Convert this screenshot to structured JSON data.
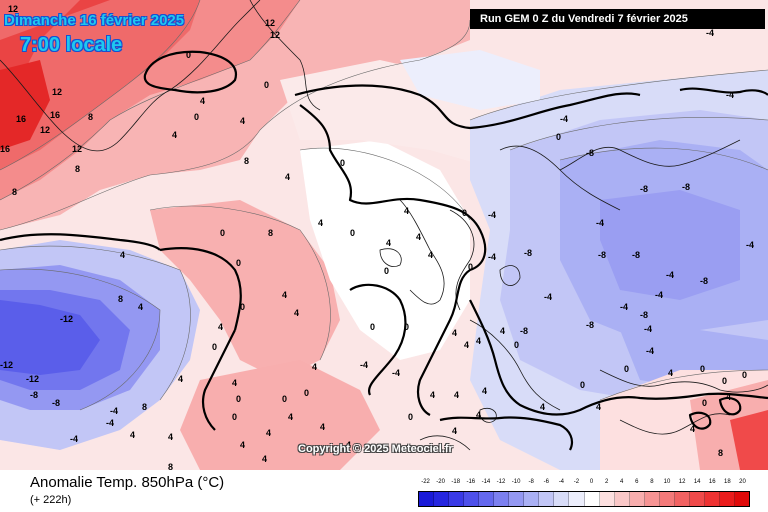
{
  "header": {
    "date": "Dimanche 16 février 2025",
    "time": "7:00 locale",
    "run": "Run GEM 0 Z du Vendredi 7 février 2025"
  },
  "copyright": "Copyright © 2025 Meteociel.fr",
  "footer": {
    "title": "Anomalie Temp. 850hPa (°C)",
    "lead": "(+ 222h)"
  },
  "legend": {
    "ticks": [
      "-22",
      "-20",
      "-18",
      "-16",
      "-14",
      "-12",
      "-10",
      "-8",
      "-6",
      "-4",
      "-2",
      "0",
      "2",
      "4",
      "6",
      "8",
      "10",
      "12",
      "14",
      "16",
      "18",
      "20"
    ],
    "colors": [
      "#1a1ad8",
      "#2626e0",
      "#3a3ae6",
      "#4e50ea",
      "#6468ee",
      "#7c80f0",
      "#9498f2",
      "#aab0f4",
      "#c2c6f6",
      "#d8dcf8",
      "#eceefc",
      "#ffffff",
      "#fde0e0",
      "#fac8c8",
      "#f8aeae",
      "#f69494",
      "#f47a7a",
      "#f26262",
      "#f04a4a",
      "#ee3232",
      "#ea1c1c",
      "#e00a0a"
    ]
  },
  "contour_labels": [
    "12",
    "12",
    "12",
    "12",
    "8",
    "12",
    "16",
    "16",
    "12",
    "16",
    "8",
    "8",
    "0",
    "4",
    "0",
    "4",
    "4",
    "0",
    "4",
    "0",
    "0",
    "0",
    "0",
    "4",
    "4",
    "0",
    "-4",
    "-8",
    "-8",
    "-8",
    "-8",
    "-4",
    "-4",
    "-4",
    "-8",
    "-8",
    "-4",
    "-12",
    "-12",
    "-12",
    "-8",
    "-8",
    "-4",
    "-4",
    "-4",
    "4",
    "4",
    "4",
    "4",
    "4",
    "8",
    "4",
    "0",
    "0",
    "4",
    "0",
    "4",
    "4",
    "4",
    "4",
    "0",
    "0",
    "4",
    "4",
    "0",
    "-4",
    "0",
    "0",
    "4",
    "4",
    "4",
    "4",
    "0",
    "4",
    "4",
    "4",
    "0",
    "4",
    "4",
    "0",
    "0",
    "4",
    "-4",
    "0",
    "0",
    "0",
    "4",
    "0",
    "4",
    "8",
    "-4",
    "-4",
    "-4",
    "0",
    "-8",
    "-8",
    "-8",
    "-4",
    "4",
    "4",
    "-4",
    "-4",
    "4",
    "4",
    "8",
    "4",
    "0",
    "4",
    "8",
    "-4",
    "-8",
    "0",
    "-4",
    "8",
    "4",
    "4",
    "8"
  ]
}
